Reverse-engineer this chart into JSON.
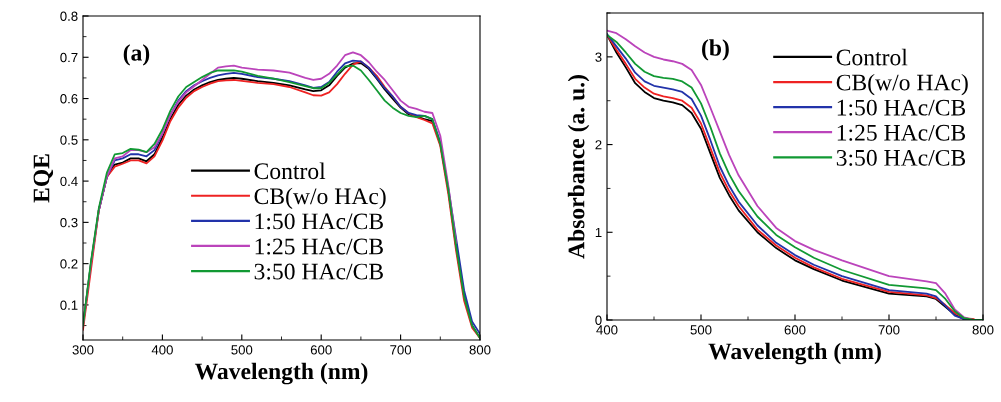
{
  "chart_data": [
    {
      "type": "line",
      "xlabel": "Wavelength (nm)",
      "ylabel": "EQE",
      "annotations": [
        "(a)"
      ],
      "legend": "center",
      "grid": false,
      "x": [
        300,
        310,
        320,
        330,
        340,
        350,
        360,
        370,
        380,
        390,
        400,
        410,
        420,
        430,
        440,
        450,
        460,
        470,
        480,
        490,
        500,
        520,
        540,
        560,
        580,
        590,
        600,
        610,
        620,
        630,
        640,
        650,
        660,
        670,
        680,
        690,
        700,
        710,
        720,
        730,
        740,
        750,
        760,
        770,
        780,
        790,
        800
      ],
      "xlim": [
        300,
        800
      ],
      "xticks": [
        300,
        400,
        500,
        600,
        700,
        800
      ],
      "ylim": [
        0.015,
        0.8
      ],
      "yticks": [
        0.1,
        0.2,
        0.3,
        0.4,
        0.5,
        0.6,
        0.7,
        0.8
      ],
      "series": [
        {
          "name": "Control",
          "color": "#000000",
          "values": [
            0.05,
            0.2,
            0.33,
            0.41,
            0.44,
            0.445,
            0.455,
            0.455,
            0.448,
            0.465,
            0.505,
            0.55,
            0.585,
            0.607,
            0.622,
            0.632,
            0.64,
            0.645,
            0.648,
            0.65,
            0.648,
            0.642,
            0.638,
            0.632,
            0.622,
            0.618,
            0.62,
            0.632,
            0.655,
            0.675,
            0.685,
            0.686,
            0.672,
            0.648,
            0.622,
            0.6,
            0.578,
            0.562,
            0.556,
            0.55,
            0.545,
            0.49,
            0.38,
            0.24,
            0.12,
            0.05,
            0.02
          ]
        },
        {
          "name": "CB(w/o HAc)",
          "color": "#ee2222",
          "values": [
            0.04,
            0.185,
            0.33,
            0.41,
            0.435,
            0.442,
            0.45,
            0.45,
            0.443,
            0.46,
            0.498,
            0.545,
            0.578,
            0.602,
            0.618,
            0.628,
            0.636,
            0.642,
            0.644,
            0.645,
            0.643,
            0.638,
            0.635,
            0.628,
            0.615,
            0.608,
            0.607,
            0.615,
            0.635,
            0.66,
            0.682,
            0.69,
            0.675,
            0.655,
            0.628,
            0.605,
            0.58,
            0.565,
            0.555,
            0.548,
            0.54,
            0.485,
            0.37,
            0.23,
            0.11,
            0.045,
            0.02
          ]
        },
        {
          "name": "1:50 HAc/CB",
          "color": "#2233aa",
          "values": [
            null,
            null,
            0.33,
            0.41,
            0.45,
            0.455,
            0.465,
            0.465,
            0.46,
            0.475,
            0.515,
            0.56,
            0.595,
            0.618,
            0.632,
            0.642,
            0.65,
            0.656,
            0.66,
            0.662,
            0.66,
            0.652,
            0.648,
            0.642,
            0.632,
            0.626,
            0.628,
            0.64,
            0.665,
            0.685,
            0.692,
            0.69,
            0.675,
            0.65,
            0.625,
            0.605,
            0.58,
            0.565,
            0.56,
            0.558,
            0.55,
            0.495,
            0.385,
            0.26,
            0.135,
            0.06,
            0.03
          ]
        },
        {
          "name": "1:25 HAc/CB",
          "color": "#bb44bb",
          "values": [
            0.05,
            0.2,
            0.33,
            0.41,
            0.455,
            0.46,
            0.475,
            0.475,
            0.47,
            0.482,
            0.515,
            0.56,
            0.592,
            0.615,
            0.63,
            0.645,
            0.66,
            0.675,
            0.678,
            0.68,
            0.675,
            0.67,
            0.668,
            0.663,
            0.65,
            0.645,
            0.648,
            0.66,
            0.68,
            0.705,
            0.712,
            0.705,
            0.688,
            0.665,
            0.645,
            0.62,
            0.595,
            0.58,
            0.575,
            0.568,
            0.565,
            0.51,
            0.39,
            0.25,
            null,
            null,
            null
          ]
        },
        {
          "name": "3:50 HAc/CB",
          "color": "#119933",
          "values": [
            0.05,
            0.205,
            0.335,
            0.42,
            0.465,
            0.468,
            0.478,
            0.476,
            0.47,
            0.49,
            0.525,
            0.57,
            0.605,
            0.628,
            0.64,
            0.652,
            0.662,
            0.668,
            0.668,
            0.668,
            0.665,
            0.655,
            0.648,
            0.64,
            0.63,
            0.625,
            0.625,
            0.638,
            0.658,
            0.678,
            0.68,
            0.668,
            0.645,
            0.62,
            0.595,
            0.578,
            0.565,
            0.558,
            0.555,
            0.558,
            0.55,
            0.49,
            0.38,
            0.24,
            0.12,
            0.05,
            0.02
          ]
        }
      ]
    },
    {
      "type": "line",
      "xlabel": "Wavelength (nm)",
      "ylabel": "Absorbance (a. u.)",
      "annotations": [
        "(b)"
      ],
      "legend": "upper right",
      "grid": false,
      "x": [
        400,
        410,
        420,
        430,
        440,
        450,
        460,
        470,
        480,
        490,
        500,
        510,
        520,
        530,
        540,
        560,
        580,
        600,
        620,
        650,
        700,
        740,
        750,
        760,
        770,
        780,
        790,
        800
      ],
      "xlim": [
        400,
        800
      ],
      "xticks": [
        400,
        500,
        600,
        700,
        800
      ],
      "ylim": [
        0,
        3.5
      ],
      "yticks": [
        0,
        1,
        2,
        3
      ],
      "series": [
        {
          "name": "Control",
          "color": "#000000",
          "values": [
            3.25,
            3.05,
            2.88,
            2.7,
            2.6,
            2.53,
            2.5,
            2.48,
            2.45,
            2.36,
            2.18,
            1.9,
            1.62,
            1.42,
            1.25,
            1.0,
            0.82,
            0.68,
            0.58,
            0.45,
            0.3,
            0.27,
            0.24,
            0.15,
            0.06,
            0.01,
            0,
            0
          ]
        },
        {
          "name": "CB(w/o HAc)",
          "color": "#ee2222",
          "values": [
            3.25,
            3.08,
            2.92,
            2.75,
            2.65,
            2.58,
            2.55,
            2.53,
            2.5,
            2.42,
            2.24,
            1.96,
            1.68,
            1.47,
            1.3,
            1.03,
            0.85,
            0.71,
            0.6,
            0.47,
            0.32,
            0.28,
            0.25,
            0.17,
            0.08,
            0.02,
            0.01,
            null
          ]
        },
        {
          "name": "1:50 HAc/CB",
          "color": "#2233aa",
          "values": [
            3.26,
            3.12,
            2.98,
            2.82,
            2.72,
            2.67,
            2.65,
            2.63,
            2.6,
            2.52,
            2.33,
            2.05,
            1.75,
            1.53,
            1.35,
            1.08,
            0.88,
            0.74,
            0.63,
            0.5,
            0.34,
            0.3,
            0.27,
            0.16,
            0.05,
            0.01,
            0,
            0
          ]
        },
        {
          "name": "1:25 HAc/CB",
          "color": "#bb44bb",
          "values": [
            3.3,
            3.27,
            3.2,
            3.12,
            3.05,
            3.0,
            2.97,
            2.95,
            2.92,
            2.85,
            2.68,
            2.42,
            2.15,
            1.88,
            1.65,
            1.3,
            1.05,
            0.9,
            0.8,
            0.68,
            0.5,
            0.44,
            0.42,
            0.3,
            0.12,
            0.03,
            0,
            0
          ]
        },
        {
          "name": "3:50 HAc/CB",
          "color": "#119933",
          "values": [
            3.25,
            3.17,
            3.05,
            2.92,
            2.83,
            2.78,
            2.76,
            2.75,
            2.72,
            2.65,
            2.47,
            2.2,
            1.9,
            1.66,
            1.47,
            1.18,
            0.97,
            0.83,
            0.71,
            0.57,
            0.4,
            0.36,
            0.34,
            0.24,
            0.1,
            0.02,
            0,
            0
          ]
        }
      ]
    }
  ]
}
